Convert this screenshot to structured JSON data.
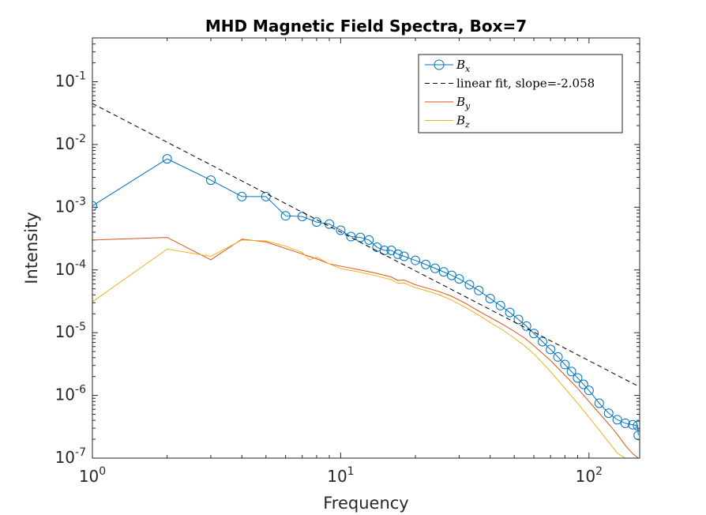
{
  "chart_data": {
    "type": "line",
    "title": "MHD Magnetic Field Spectra, Box=7",
    "xlabel": "Frequency",
    "ylabel": "Intensity",
    "xscale": "log",
    "yscale": "log",
    "xlim": [
      1,
      160
    ],
    "ylim": [
      1e-07,
      0.5
    ],
    "legend_position": "top-right",
    "grid": false,
    "x_ticks": [
      {
        "base": "10",
        "exp": "0"
      },
      {
        "base": "10",
        "exp": "1"
      },
      {
        "base": "10",
        "exp": "2"
      }
    ],
    "y_ticks": [
      {
        "base": "10",
        "exp": "-7"
      },
      {
        "base": "10",
        "exp": "-6"
      },
      {
        "base": "10",
        "exp": "-5"
      },
      {
        "base": "10",
        "exp": "-4"
      },
      {
        "base": "10",
        "exp": "-3"
      },
      {
        "base": "10",
        "exp": "-2"
      },
      {
        "base": "10",
        "exp": "-1"
      }
    ],
    "series": [
      {
        "name": "B_x",
        "legend_label": "B",
        "legend_sub": "x",
        "color": "#0072BD",
        "style": "line-circles",
        "points": [
          [
            1,
            0.00105
          ],
          [
            2,
            0.0059
          ],
          [
            3,
            0.0027
          ],
          [
            4,
            0.00148
          ],
          [
            5,
            0.00148
          ],
          [
            6,
            0.00073
          ],
          [
            7,
            0.00071
          ],
          [
            8,
            0.00058
          ],
          [
            9,
            0.00054
          ],
          [
            10,
            0.00043
          ],
          [
            11,
            0.00034
          ],
          [
            12,
            0.00033
          ],
          [
            13,
            0.0003
          ],
          [
            14,
            0.00023
          ],
          [
            15,
            0.000205
          ],
          [
            16,
            0.000205
          ],
          [
            17,
            0.000178
          ],
          [
            18,
            0.000165
          ],
          [
            20,
            0.000142
          ],
          [
            22,
            0.000122
          ],
          [
            24,
            0.000106
          ],
          [
            26,
            9.3e-05
          ],
          [
            28,
            8.2e-05
          ],
          [
            30,
            7.2e-05
          ],
          [
            33,
            5.8e-05
          ],
          [
            36,
            4.7e-05
          ],
          [
            40,
            3.5e-05
          ],
          [
            44,
            2.7e-05
          ],
          [
            48,
            2.1e-05
          ],
          [
            52,
            1.62e-05
          ],
          [
            56,
            1.27e-05
          ],
          [
            60,
            9.7e-06
          ],
          [
            65,
            7.2e-06
          ],
          [
            70,
            5.4e-06
          ],
          [
            75,
            4.1e-06
          ],
          [
            80,
            3.1e-06
          ],
          [
            85,
            2.4e-06
          ],
          [
            90,
            1.9e-06
          ],
          [
            95,
            1.5e-06
          ],
          [
            100,
            1.2e-06
          ],
          [
            110,
            7.5e-07
          ],
          [
            120,
            5.2e-07
          ],
          [
            130,
            4.1e-07
          ],
          [
            140,
            3.6e-07
          ],
          [
            150,
            3.4e-07
          ],
          [
            157,
            3.3e-07
          ],
          [
            158,
            2.3e-07
          ]
        ]
      },
      {
        "name": "linear fit",
        "legend_label": "linear fit, slope=-2.058",
        "color": "#000000",
        "style": "dashed",
        "points": [
          [
            1,
            0.045
          ],
          [
            158,
            1.4e-06
          ]
        ]
      },
      {
        "name": "B_y",
        "legend_label": "B",
        "legend_sub": "y",
        "color": "#D95319",
        "style": "line",
        "points": [
          [
            1,
            0.0003
          ],
          [
            2,
            0.00033
          ],
          [
            3,
            0.000145
          ],
          [
            4,
            0.00031
          ],
          [
            5,
            0.00028
          ],
          [
            6,
            0.00022
          ],
          [
            7,
            0.00018
          ],
          [
            8,
            0.00015
          ],
          [
            9,
            0.000125
          ],
          [
            10,
            0.000115
          ],
          [
            12,
            0.0001
          ],
          [
            14,
            8.8e-05
          ],
          [
            16,
            7.7e-05
          ],
          [
            17,
            6.8e-05
          ],
          [
            18,
            6.9e-05
          ],
          [
            20,
            5.8e-05
          ],
          [
            22,
            5.2e-05
          ],
          [
            25,
            4.5e-05
          ],
          [
            28,
            3.8e-05
          ],
          [
            32,
            2.9e-05
          ],
          [
            36,
            2.2e-05
          ],
          [
            40,
            1.75e-05
          ],
          [
            45,
            1.35e-05
          ],
          [
            50,
            1.05e-05
          ],
          [
            55,
            8.2e-06
          ],
          [
            60,
            6.2e-06
          ],
          [
            70,
            3.6e-06
          ],
          [
            80,
            2.1e-06
          ],
          [
            90,
            1.3e-06
          ],
          [
            100,
            8e-07
          ],
          [
            110,
            5.2e-07
          ],
          [
            120,
            3.5e-07
          ],
          [
            130,
            2.4e-07
          ],
          [
            140,
            1.6e-07
          ],
          [
            150,
            1.18e-07
          ],
          [
            158,
            1e-07
          ]
        ]
      },
      {
        "name": "B_z",
        "legend_label": "B",
        "legend_sub": "z",
        "color": "#EDB120",
        "style": "line",
        "points": [
          [
            1,
            3.1e-05
          ],
          [
            2,
            0.000215
          ],
          [
            3,
            0.000165
          ],
          [
            4,
            0.0003
          ],
          [
            5,
            0.00029
          ],
          [
            6,
            0.00024
          ],
          [
            7,
            0.00019
          ],
          [
            7.5,
            0.000145
          ],
          [
            8,
            0.00016
          ],
          [
            9,
            0.000125
          ],
          [
            10,
            0.000105
          ],
          [
            12,
            9.2e-05
          ],
          [
            14,
            8e-05
          ],
          [
            16,
            7e-05
          ],
          [
            17,
            6.1e-05
          ],
          [
            18,
            6.2e-05
          ],
          [
            20,
            5.2e-05
          ],
          [
            22,
            4.7e-05
          ],
          [
            25,
            4e-05
          ],
          [
            28,
            3.3e-05
          ],
          [
            32,
            2.5e-05
          ],
          [
            36,
            1.9e-05
          ],
          [
            40,
            1.45e-05
          ],
          [
            45,
            1.1e-05
          ],
          [
            50,
            8.2e-06
          ],
          [
            55,
            6.2e-06
          ],
          [
            60,
            4.6e-06
          ],
          [
            70,
            2.4e-06
          ],
          [
            80,
            1.3e-06
          ],
          [
            90,
            7.5e-07
          ],
          [
            100,
            4.5e-07
          ],
          [
            110,
            2.8e-07
          ],
          [
            120,
            1.8e-07
          ],
          [
            130,
            1.2e-07
          ],
          [
            140,
            1e-07
          ]
        ]
      }
    ]
  }
}
